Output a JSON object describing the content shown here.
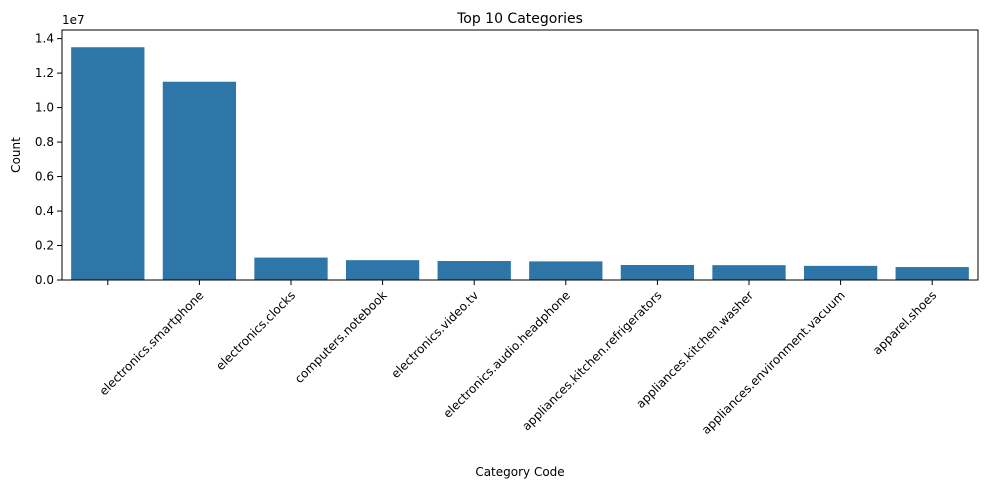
{
  "chart_data": {
    "type": "bar",
    "title": "Top 10 Categories",
    "xlabel": "Category Code",
    "ylabel": "Count",
    "y_multiplier_label": "1e7",
    "y_multiplier": 10000000,
    "ylim": [
      0,
      1.45
    ],
    "yticks": [
      0,
      0.2,
      0.4,
      0.6,
      0.8,
      1.0,
      1.2,
      1.4
    ],
    "ytick_labels": [
      "0.0",
      "0.2",
      "0.4",
      "0.6",
      "0.8",
      "1.0",
      "1.2",
      "1.4"
    ],
    "categories": [
      "",
      "electronics.smartphone",
      "electronics.clocks",
      "computers.notebook",
      "electronics.video.tv",
      "electronics.audio.headphone",
      "appliances.kitchen.refrigerators",
      "appliances.kitchen.washer",
      "appliances.environment.vacuum",
      "apparel.shoes"
    ],
    "values": [
      1.35,
      1.15,
      0.13,
      0.115,
      0.11,
      0.108,
      0.087,
      0.086,
      0.082,
      0.075
    ],
    "bar_color": "#2e75a8",
    "grid": false,
    "legend": "none"
  }
}
